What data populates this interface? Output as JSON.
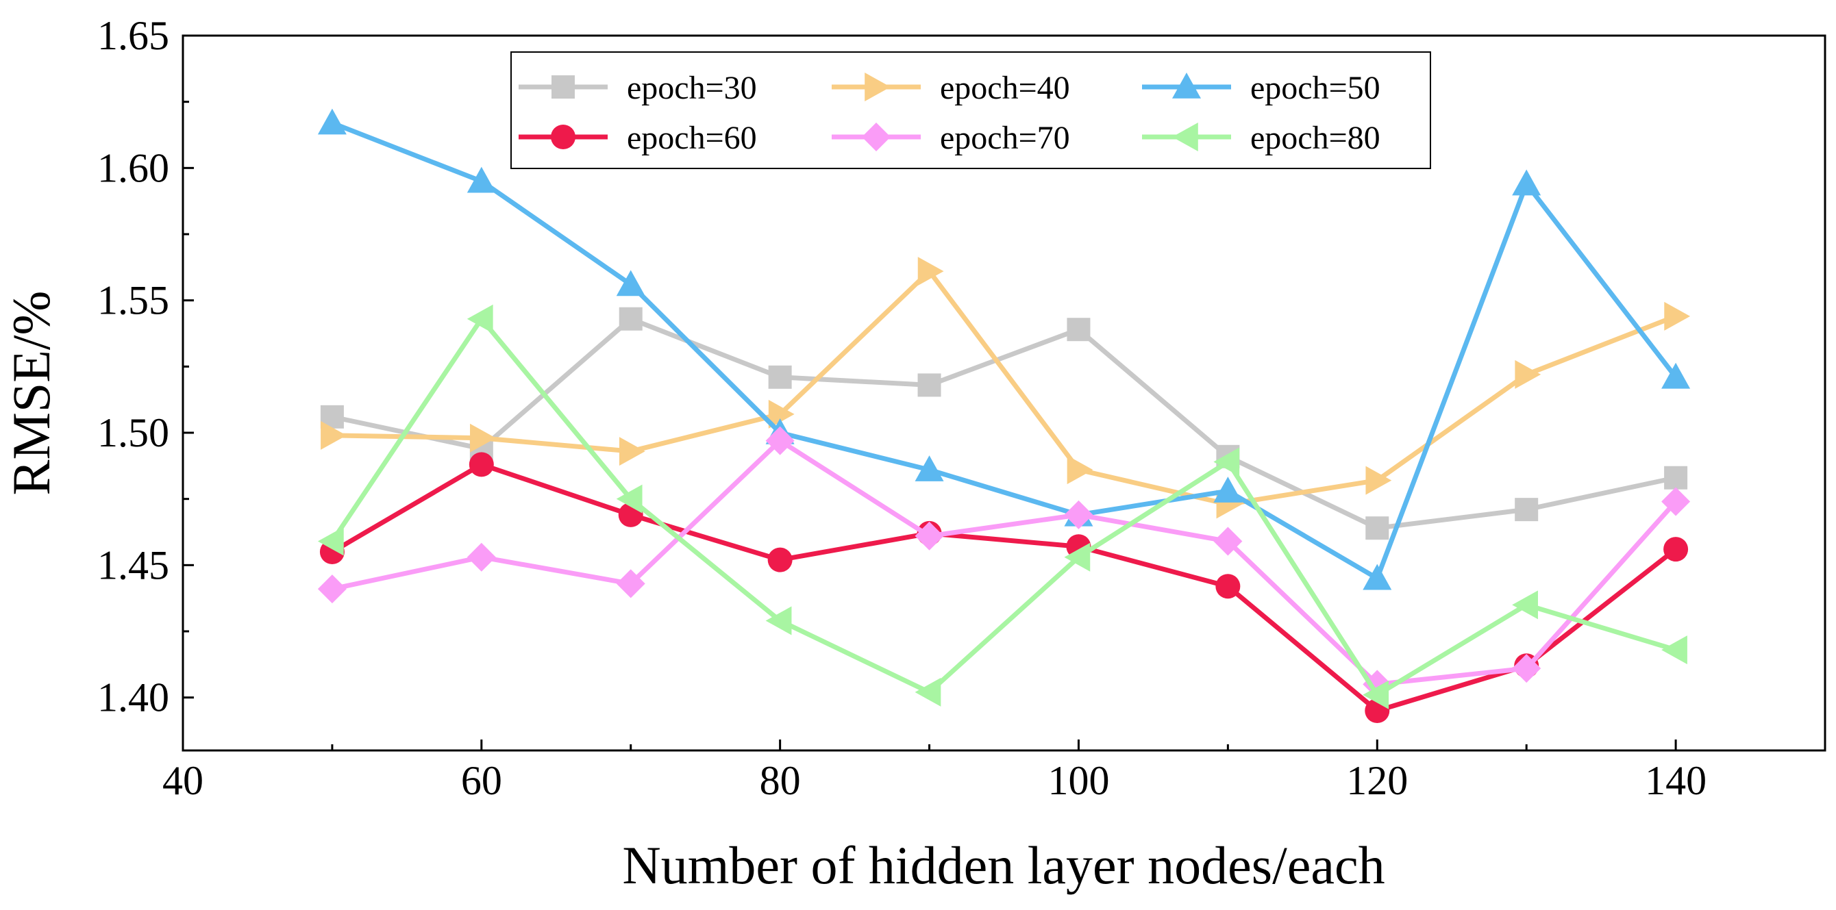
{
  "chart_data": {
    "type": "line",
    "title": "",
    "xlabel": "Number of hidden layer nodes/each",
    "ylabel": "RMSE/%",
    "xlim": [
      40,
      150
    ],
    "ylim": [
      1.38,
      1.65
    ],
    "x_ticks": [
      40,
      60,
      80,
      100,
      120,
      140
    ],
    "x_tick_labels": [
      "40",
      "60",
      "80",
      "100",
      "120",
      "140"
    ],
    "y_ticks": [
      1.4,
      1.45,
      1.5,
      1.55,
      1.6,
      1.65
    ],
    "y_tick_labels": [
      "1.40",
      "1.45",
      "1.50",
      "1.55",
      "1.60",
      "1.65"
    ],
    "grid": false,
    "legend_position": "top-center",
    "x": [
      50,
      60,
      70,
      80,
      90,
      100,
      110,
      120,
      130,
      140
    ],
    "series": [
      {
        "name": "epoch=30",
        "marker": "square",
        "color": "#c8c8c8",
        "values": [
          1.506,
          1.494,
          1.543,
          1.521,
          1.518,
          1.539,
          1.491,
          1.464,
          1.471,
          1.483
        ]
      },
      {
        "name": "epoch=40",
        "marker": "triangle-right",
        "color": "#f9cd84",
        "values": [
          1.499,
          1.498,
          1.493,
          1.507,
          1.561,
          1.486,
          1.473,
          1.482,
          1.522,
          1.544
        ]
      },
      {
        "name": "epoch=50",
        "marker": "triangle-up",
        "color": "#5bb8f0",
        "values": [
          1.617,
          1.595,
          1.556,
          1.5,
          1.486,
          1.469,
          1.478,
          1.445,
          1.594,
          1.521
        ]
      },
      {
        "name": "epoch=60",
        "marker": "circle",
        "color": "#ee1a4b",
        "values": [
          1.455,
          1.488,
          1.469,
          1.452,
          1.462,
          1.457,
          1.442,
          1.395,
          1.412,
          1.456
        ]
      },
      {
        "name": "epoch=70",
        "marker": "diamond",
        "color": "#fa9cf7",
        "values": [
          1.441,
          1.453,
          1.443,
          1.497,
          1.461,
          1.469,
          1.459,
          1.405,
          1.411,
          1.474
        ]
      },
      {
        "name": "epoch=80",
        "marker": "triangle-left",
        "color": "#a8f5a2",
        "values": [
          1.459,
          1.543,
          1.475,
          1.429,
          1.402,
          1.453,
          1.489,
          1.401,
          1.435,
          1.418
        ]
      }
    ]
  }
}
